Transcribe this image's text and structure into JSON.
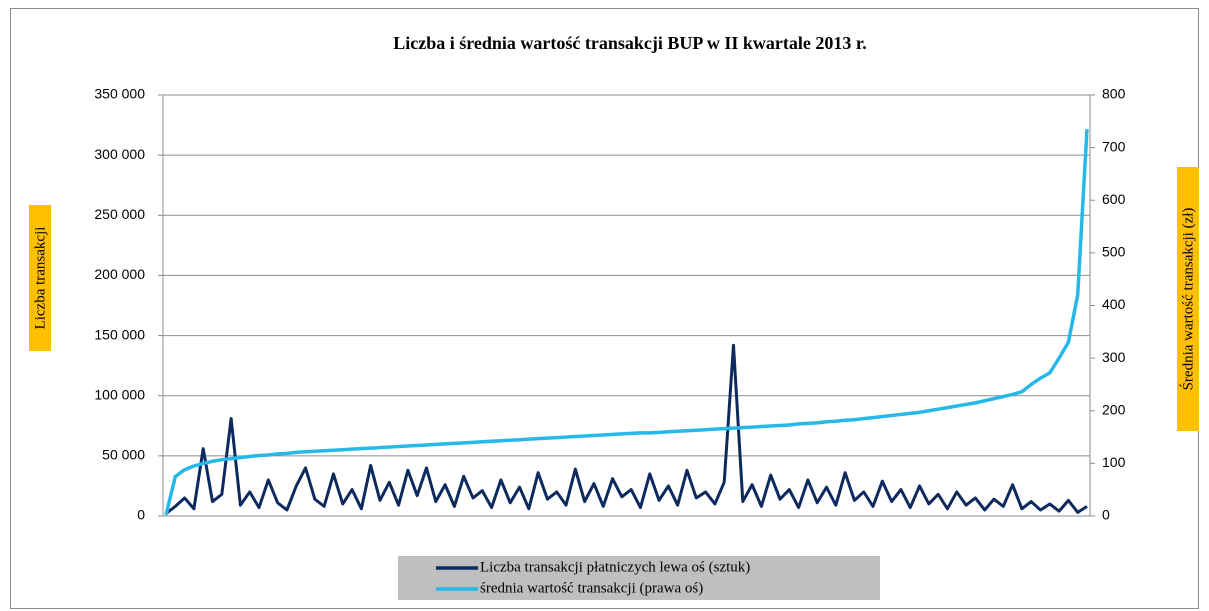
{
  "chart_data": {
    "type": "line",
    "title": "Liczba i średnia wartość transakcji BUP w II kwartale 2013 r.",
    "y_label": "Liczba transakcji",
    "y2_label": "Średnia wartość transakcji (zł)",
    "categories": [
      null,
      null,
      null,
      null,
      null,
      null,
      null,
      null,
      null,
      null,
      null,
      null,
      null,
      null,
      null,
      null,
      null,
      null,
      null,
      null,
      null,
      null,
      null,
      null,
      null,
      null,
      null,
      null,
      null,
      null,
      null,
      null,
      null,
      null,
      null,
      null,
      null,
      null,
      null,
      null,
      null,
      null,
      null,
      null,
      null,
      null,
      null,
      null,
      null,
      null,
      null,
      null,
      null,
      null,
      null,
      null,
      null,
      null,
      null,
      null,
      null,
      null,
      null,
      null,
      null,
      null,
      null,
      null,
      null,
      null,
      null,
      null,
      null,
      null,
      null,
      null,
      null,
      null,
      null,
      null,
      null,
      null,
      null,
      null,
      null,
      null,
      null,
      null,
      null,
      null,
      null,
      null,
      null,
      null,
      null,
      null,
      null,
      null,
      null,
      null
    ],
    "ylim": [
      0,
      350000
    ],
    "yticks": [
      {
        "value": 0,
        "label": "0"
      },
      {
        "value": 50000,
        "label": "50 000"
      },
      {
        "value": 100000,
        "label": "100 000"
      },
      {
        "value": 150000,
        "label": "150 000"
      },
      {
        "value": 200000,
        "label": "200 000"
      },
      {
        "value": 250000,
        "label": "250 000"
      },
      {
        "value": 300000,
        "label": "300 000"
      },
      {
        "value": 350000,
        "label": "350 000"
      }
    ],
    "y2lim": [
      0,
      800
    ],
    "y2ticks": [
      0,
      100,
      200,
      300,
      400,
      500,
      600,
      700,
      800
    ],
    "grid": true,
    "series": [
      {
        "name": "Liczba transakcji płatniczych lewa oś (sztuk)",
        "color": "#0d2a5e",
        "values": [
          2000,
          8000,
          15000,
          6000,
          56000,
          12000,
          18000,
          81000,
          9000,
          20000,
          7000,
          30000,
          11000,
          5000,
          25000,
          40000,
          14000,
          8000,
          35000,
          10000,
          22000,
          6000,
          42000,
          13000,
          28000,
          9000,
          38000,
          17000,
          40000,
          12000,
          26000,
          8000,
          33000,
          15000,
          21000,
          7000,
          30000,
          11000,
          24000,
          6000,
          36000,
          14000,
          20000,
          9000,
          39000,
          12000,
          27000,
          8000,
          31000,
          16000,
          22000,
          7000,
          35000,
          13000,
          25000,
          9000,
          38000,
          15000,
          20000,
          10000,
          28000,
          142000,
          12000,
          26000,
          8000,
          34000,
          14000,
          22000,
          7000,
          30000,
          11000,
          24000,
          9000,
          36000,
          13000,
          20000,
          8000,
          29000,
          12000,
          22000,
          7000,
          25000,
          10000,
          18000,
          6000,
          20000,
          9000,
          15000,
          5000,
          14000,
          8000,
          26000,
          6000,
          12000,
          5000,
          10000,
          4000,
          13000,
          3000,
          8000
        ]
      },
      {
        "name": "średnia wartość transakcji (prawa oś)",
        "color": "#25b8e8",
        "axis": "y2",
        "values": [
          2,
          75,
          88,
          95,
          100,
          104,
          107,
          109,
          111,
          113,
          115,
          116,
          118,
          119,
          121,
          122,
          123,
          124,
          125,
          126,
          127,
          128,
          129,
          130,
          131,
          132,
          133,
          134,
          135,
          136,
          137,
          138,
          139,
          140,
          141,
          142,
          143,
          144,
          145,
          146,
          147,
          148,
          149,
          150,
          151,
          152,
          153,
          154,
          155,
          156,
          157,
          158,
          158,
          159,
          160,
          161,
          162,
          163,
          164,
          165,
          166,
          167,
          168,
          169,
          170,
          171,
          172,
          173,
          175,
          176,
          177,
          179,
          180,
          182,
          183,
          185,
          187,
          189,
          191,
          193,
          195,
          197,
          200,
          203,
          206,
          209,
          212,
          215,
          219,
          223,
          227,
          231,
          236,
          250,
          262,
          272,
          300,
          330,
          420,
          735
        ]
      }
    ]
  }
}
